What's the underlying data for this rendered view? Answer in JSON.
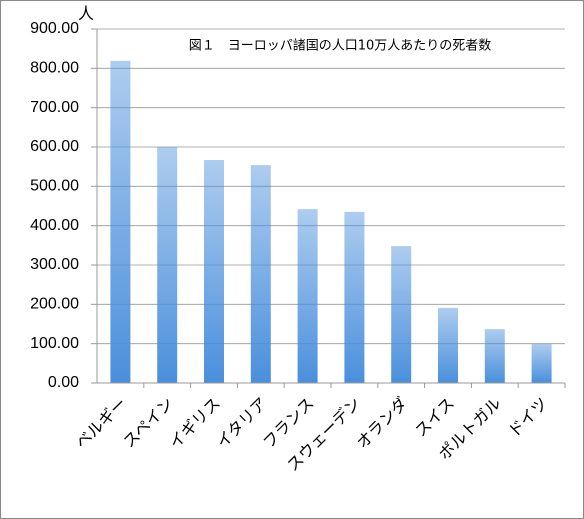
{
  "chart_data": {
    "type": "bar",
    "title": "図１　ヨーロッパ諸国の人口10万人あたりの死者数",
    "y_unit": "人",
    "categories": [
      "ベルギー",
      "スペイン",
      "イギリス",
      "イタリア",
      "フランス",
      "スウェーデン",
      "オランダ",
      "スイス",
      "ポルトガル",
      "ドイツ"
    ],
    "values": [
      819,
      600,
      567,
      554,
      442,
      435,
      348,
      191,
      137,
      99
    ],
    "color": "#4a8fdc",
    "ylim": [
      0,
      900
    ],
    "yticks": [
      {
        "value": 0,
        "label": "0.00"
      },
      {
        "value": 100,
        "label": "100.00"
      },
      {
        "value": 200,
        "label": "200.00"
      },
      {
        "value": 300,
        "label": "300.00"
      },
      {
        "value": 400,
        "label": "400.00"
      },
      {
        "value": 500,
        "label": "500.00"
      },
      {
        "value": 600,
        "label": "600.00"
      },
      {
        "value": 700,
        "label": "700.00"
      },
      {
        "value": 800,
        "label": "800.00"
      },
      {
        "value": 900,
        "label": "900.00"
      }
    ],
    "grid": true
  }
}
